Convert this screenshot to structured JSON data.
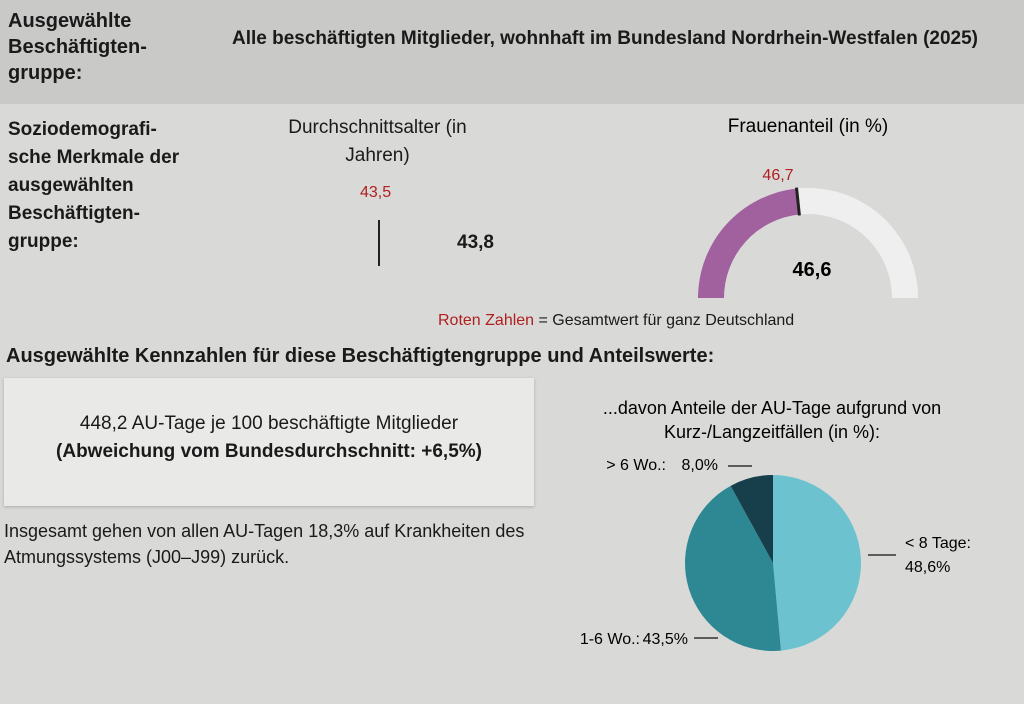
{
  "header": {
    "label": "Ausgewählte Beschäftigten-gruppe:",
    "title": "Alle beschäftigten Mitglieder, wohnhaft im Bundesland Nordrhein-Westfalen (2025)"
  },
  "socio": {
    "label": "Soziodemografi-sche Merkmale der ausgewählten Beschäftigten-gruppe:",
    "age": {
      "title": "Durchschnittsalter (in Jahren)",
      "value": "43,8",
      "reference": "43,5"
    },
    "note": {
      "red": "Roten Zahlen",
      "text": "= Gesamtwert für ganz Deutschland"
    }
  },
  "key_figures": {
    "title": "Ausgewählte Kennzahlen für diese Beschäftigtengruppe und Anteilswerte:",
    "box": [
      "448,2 AU-Tage je 100 beschäftigte Mitglieder",
      "(Abweichung vom Bundesdurchschnitt: +6,5%)"
    ],
    "text": "Insgesamt gehen von allen AU-Tagen 18,3% auf Krankheiten des Atmungssystems (J00–J99) zurück."
  },
  "chart_data": [
    {
      "type": "gauge",
      "title": "Frauenanteil (in %)",
      "ylim": [
        0,
        100
      ],
      "value": 46.6,
      "value_label": "46,6",
      "reference": 46.7,
      "reference_label": "46,7",
      "color": "#a1619f",
      "track_color": "#efefef",
      "reference_color": "#222222"
    },
    {
      "type": "pie",
      "title": "...davon Anteile der AU-Tage aufgrund von Kurz-/Langzeitfällen (in %):",
      "categories": [
        "< 8 Tage:",
        "1-6 Wo.:",
        "> 6 Wo.:"
      ],
      "values": [
        48.6,
        43.5,
        8.0
      ],
      "value_labels": [
        "48,6%",
        "43,5%",
        "8,0%"
      ],
      "colors": [
        "#6cc3cf",
        "#2e8894",
        "#173e4b"
      ]
    }
  ]
}
